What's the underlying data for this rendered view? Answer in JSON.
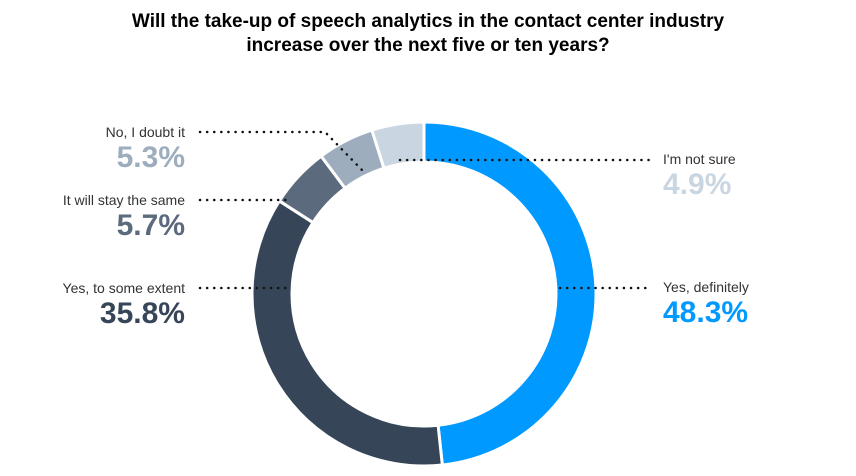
{
  "chart_data": {
    "type": "pie",
    "title": "Will the take-up of speech analytics in the contact center industry increase over the next five or ten years?",
    "title_lines": [
      "Will the take-up of speech analytics in the contact center industry",
      "increase over the next five or ten years?"
    ],
    "donut": true,
    "slices": [
      {
        "label": "Yes, definitely",
        "value": 48.3,
        "display": "48.3%",
        "color": "#0099ff"
      },
      {
        "label": "Yes, to some extent",
        "value": 35.8,
        "display": "35.8%",
        "color": "#364658"
      },
      {
        "label": "It will stay the same",
        "value": 5.7,
        "display": "5.7%",
        "color": "#5b6b7d"
      },
      {
        "label": "No, I doubt it",
        "value": 5.3,
        "display": "5.3%",
        "color": "#9dadbd"
      },
      {
        "label": "I'm not sure",
        "value": 4.9,
        "display": "4.9%",
        "color": "#c9d6e2"
      }
    ]
  }
}
